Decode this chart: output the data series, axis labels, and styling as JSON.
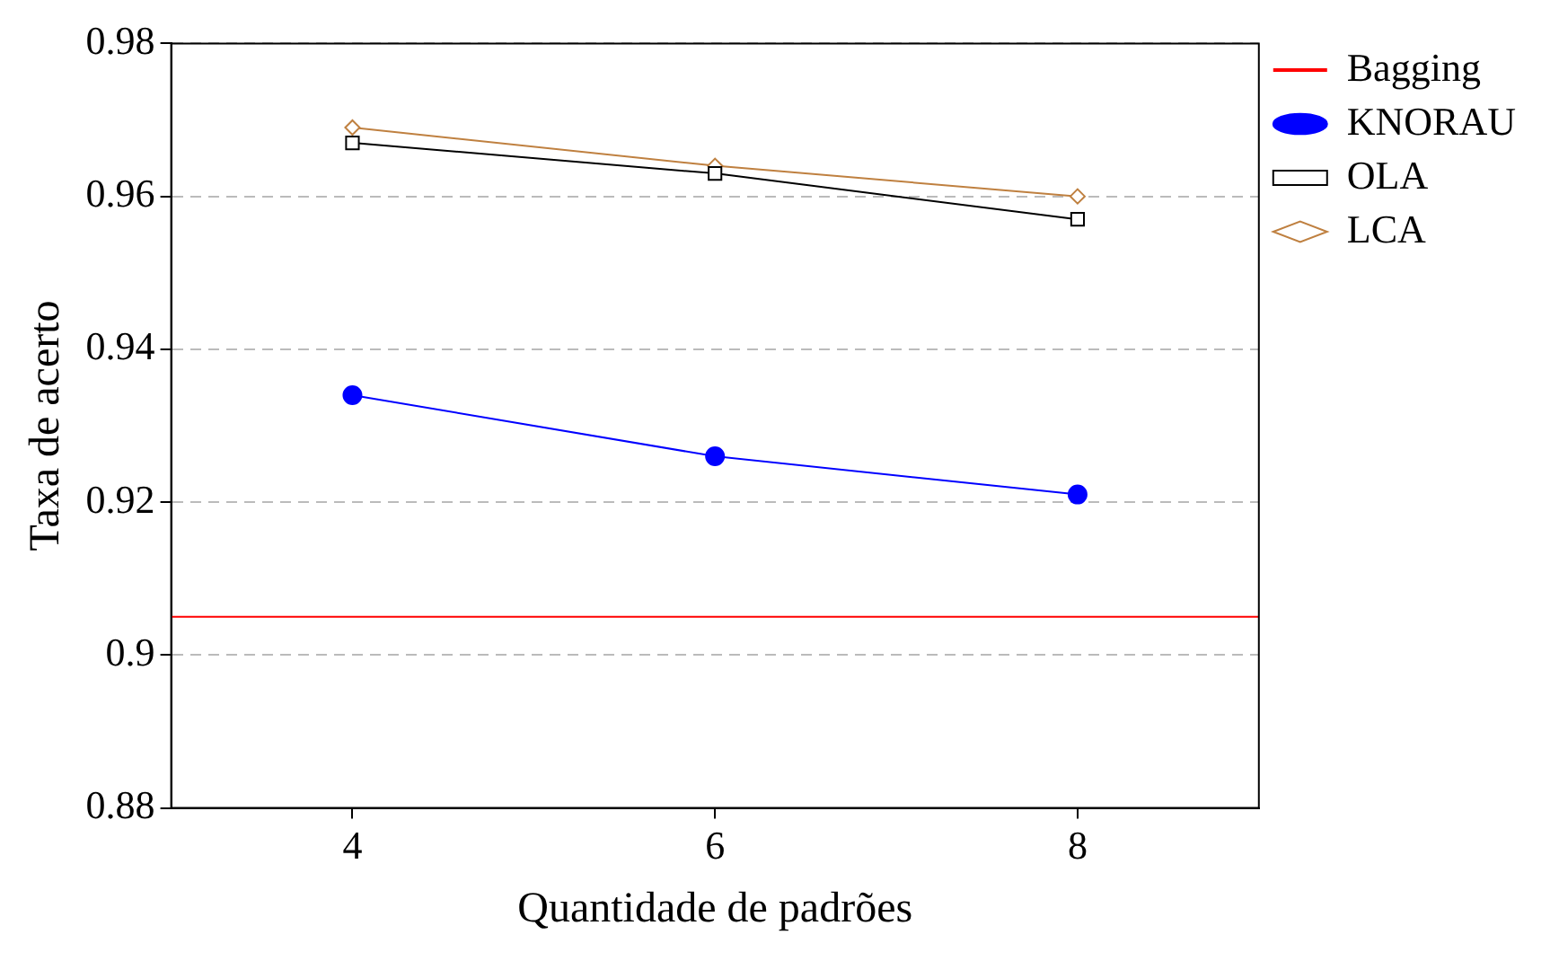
{
  "chart_data": {
    "type": "line",
    "xlabel": "Quantidade de padrões",
    "ylabel": "Taxa de acerto",
    "xlim": [
      3,
      9
    ],
    "xticks": [
      4,
      6,
      8
    ],
    "ylim": [
      0.88,
      0.98
    ],
    "yticks": [
      0.88,
      0.9,
      0.92,
      0.94,
      0.96,
      0.98
    ],
    "grid": "y",
    "legend": "top right",
    "series": [
      {
        "name": "Bagging",
        "color": "#ff0000",
        "x": [
          3,
          9
        ],
        "values": [
          0.905,
          0.905
        ],
        "marker": "none"
      },
      {
        "name": "KNORAU",
        "color": "#0000ff",
        "x": [
          4,
          6,
          8
        ],
        "values": [
          0.934,
          0.926,
          0.921
        ],
        "marker": "circle"
      },
      {
        "name": "OLA",
        "color": "#000000",
        "x": [
          4,
          6,
          8
        ],
        "values": [
          0.967,
          0.963,
          0.957
        ],
        "marker": "square"
      },
      {
        "name": "LCA",
        "color": "#bf8040",
        "x": [
          4,
          6,
          8
        ],
        "values": [
          0.969,
          0.964,
          0.96
        ],
        "marker": "diamond"
      }
    ]
  }
}
